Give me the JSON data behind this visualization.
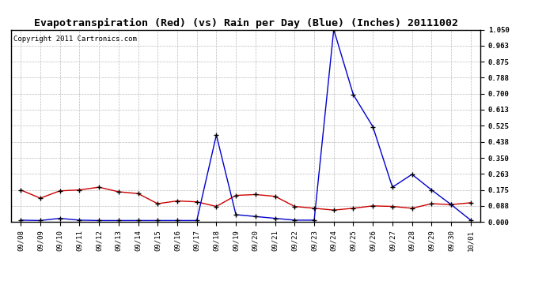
{
  "title": "Evapotranspiration (Red) (vs) Rain per Day (Blue) (Inches) 20111002",
  "copyright": "Copyright 2011 Cartronics.com",
  "x_labels": [
    "09/08",
    "09/09",
    "09/10",
    "09/11",
    "09/12",
    "09/13",
    "09/14",
    "09/15",
    "09/16",
    "09/17",
    "09/18",
    "09/19",
    "09/20",
    "09/21",
    "09/22",
    "09/23",
    "09/24",
    "09/25",
    "09/26",
    "09/27",
    "09/28",
    "09/29",
    "09/30",
    "10/01"
  ],
  "red_data": [
    0.175,
    0.13,
    0.17,
    0.175,
    0.19,
    0.165,
    0.155,
    0.1,
    0.115,
    0.11,
    0.085,
    0.145,
    0.15,
    0.14,
    0.085,
    0.075,
    0.065,
    0.075,
    0.088,
    0.085,
    0.075,
    0.1,
    0.095,
    0.105
  ],
  "blue_data": [
    0.01,
    0.008,
    0.02,
    0.01,
    0.008,
    0.008,
    0.008,
    0.008,
    0.008,
    0.008,
    0.475,
    0.04,
    0.03,
    0.02,
    0.01,
    0.01,
    1.05,
    0.695,
    0.52,
    0.19,
    0.26,
    0.175,
    0.095,
    0.01
  ],
  "ylim": [
    0.0,
    1.05
  ],
  "yticks": [
    0.0,
    0.088,
    0.175,
    0.263,
    0.35,
    0.438,
    0.525,
    0.613,
    0.7,
    0.788,
    0.875,
    0.963,
    1.05
  ],
  "red_color": "#cc0000",
  "blue_color": "#0000cc",
  "background_color": "#ffffff",
  "grid_color": "#bbbbbb",
  "title_fontsize": 9.5,
  "copyright_fontsize": 6.5,
  "tick_fontsize": 6.5
}
